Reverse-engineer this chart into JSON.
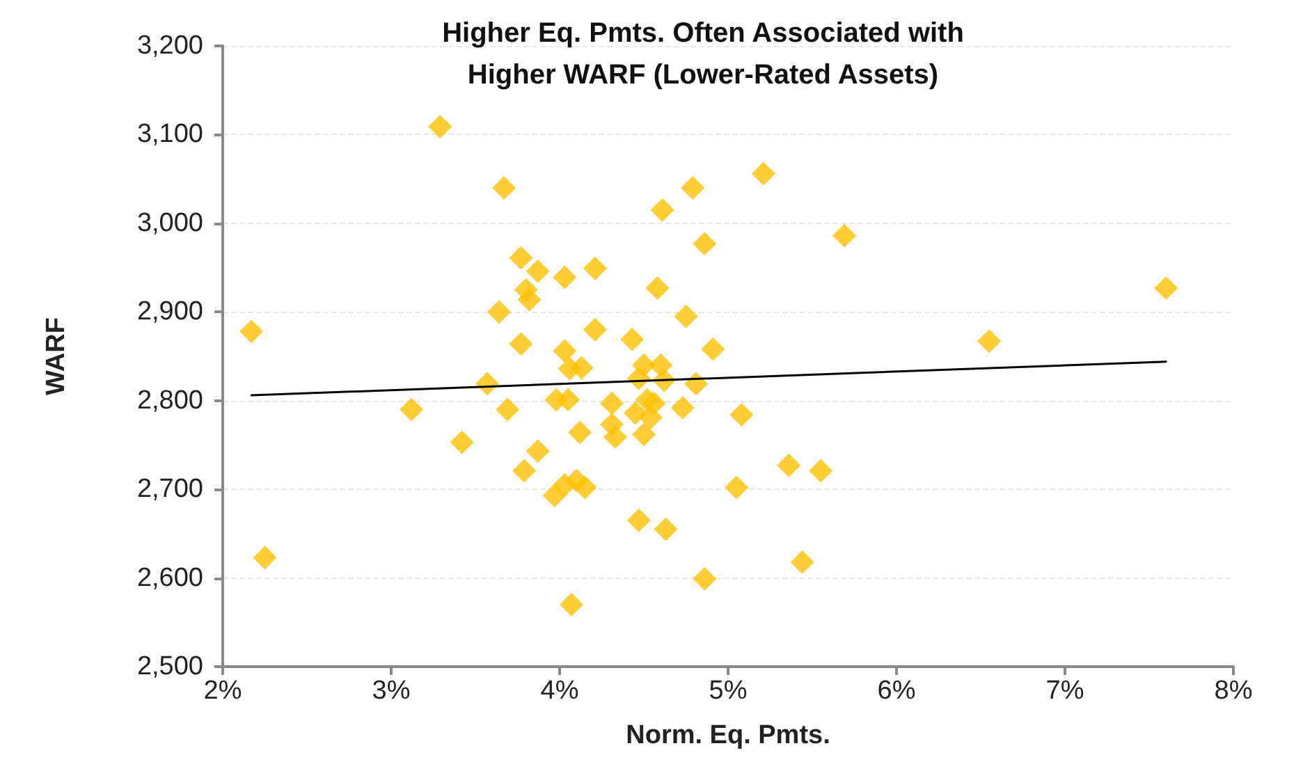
{
  "chart_data": {
    "type": "scatter",
    "title": "Higher Eq. Pmts. Often Associated with\nHigher WARF (Lower-Rated Assets)",
    "xlabel": "Norm. Eq. Pmts.",
    "ylabel": "WARF",
    "xlim": [
      2,
      8
    ],
    "xticks": [
      {
        "value": 2,
        "label": "2%"
      },
      {
        "value": 3,
        "label": "3%"
      },
      {
        "value": 4,
        "label": "4%"
      },
      {
        "value": 5,
        "label": "5%"
      },
      {
        "value": 6,
        "label": "6%"
      },
      {
        "value": 7,
        "label": "7%"
      },
      {
        "value": 8,
        "label": "8%"
      }
    ],
    "ylim": [
      2500,
      3200
    ],
    "yticks": [
      {
        "value": 2500,
        "label": "2,500"
      },
      {
        "value": 2600,
        "label": "2,600"
      },
      {
        "value": 2700,
        "label": "2,700"
      },
      {
        "value": 2800,
        "label": "2,800"
      },
      {
        "value": 2900,
        "label": "2,900"
      },
      {
        "value": 3000,
        "label": "3,000"
      },
      {
        "value": 3100,
        "label": "3,100"
      },
      {
        "value": 3200,
        "label": "3,200"
      }
    ],
    "grid": "y",
    "marker": "diamond",
    "series": [
      {
        "color": "#ffc000",
        "x": [
          2.17,
          2.25,
          3.12,
          3.29,
          3.42,
          3.57,
          3.64,
          3.67,
          3.69,
          3.77,
          3.77,
          3.79,
          3.8,
          3.82,
          3.87,
          3.87,
          3.97,
          4.03,
          4.1,
          4.15,
          3.98,
          4.05,
          4.03,
          4.03,
          4.06,
          4.13,
          4.12,
          4.21,
          4.21,
          4.07,
          4.31,
          4.31,
          4.33,
          4.43,
          4.47,
          4.5,
          4.6,
          4.62,
          4.52,
          4.56,
          4.45,
          4.54,
          4.5,
          4.47,
          4.63,
          4.58,
          4.61,
          4.79,
          4.75,
          4.73,
          4.81,
          4.86,
          4.91,
          4.86,
          5.05,
          5.08,
          5.21,
          5.36,
          5.55,
          5.44,
          5.69,
          6.55,
          7.6
        ],
        "values": [
          2878,
          2623,
          2790,
          3109,
          2753,
          2819,
          2900,
          3040,
          2790,
          2961,
          2864,
          2721,
          2925,
          2914,
          2946,
          2743,
          2693,
          2705,
          2710,
          2702,
          2801,
          2801,
          2939,
          2856,
          2836,
          2837,
          2764,
          2949,
          2880,
          2570,
          2797,
          2773,
          2759,
          2869,
          2825,
          2840,
          2840,
          2823,
          2801,
          2797,
          2786,
          2781,
          2762,
          2665,
          2655,
          2927,
          3015,
          3040,
          2895,
          2792,
          2819,
          2977,
          2858,
          2599,
          2702,
          2784,
          3056,
          2727,
          2721,
          2618,
          2986,
          2867,
          2927
        ]
      },
      {
        "type": "line",
        "color": "#000000",
        "marker": "none",
        "line_style": "solid",
        "x": [
          2.17,
          7.6
        ],
        "values": [
          2806,
          2844
        ]
      }
    ]
  }
}
